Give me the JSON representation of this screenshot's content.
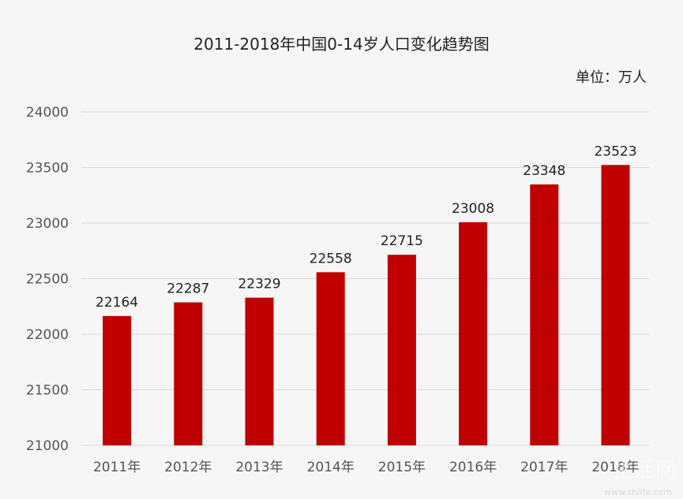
{
  "chart_data": {
    "type": "bar",
    "title": "2011-2018年中国0-14岁人口变化趋势图",
    "unit_label": "单位：万人",
    "categories": [
      "2011年",
      "2012年",
      "2013年",
      "2014年",
      "2015年",
      "2016年",
      "2017年",
      "2018年"
    ],
    "values": [
      22164,
      22287,
      22329,
      22558,
      22715,
      23008,
      23348,
      23523
    ],
    "ylim": [
      21000,
      24000
    ],
    "yticks": [
      21000,
      21500,
      22000,
      22500,
      23000,
      23500,
      24000
    ],
    "xlabel": "",
    "ylabel": "",
    "grid": true,
    "legend": "none",
    "bar_color": "#c00000",
    "grid_color": "#d9d9d9"
  },
  "watermark": {
    "text": "生活网",
    "sub": "www.shlife.com"
  }
}
